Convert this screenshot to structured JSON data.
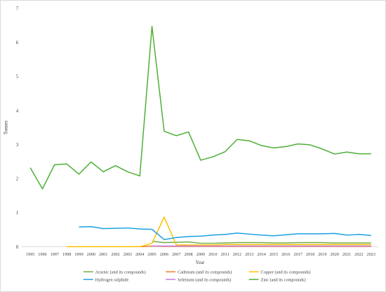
{
  "chart_data": {
    "type": "line",
    "title": "",
    "xlabel": "Year",
    "ylabel": "Tonnes",
    "ylim": [
      0,
      7
    ],
    "y_ticks": [
      "0",
      "1",
      "2",
      "3",
      "4",
      "5",
      "6",
      "7"
    ],
    "grid": false,
    "legend_position": "bottom",
    "categories": [
      "1995",
      "1996",
      "1997",
      "1998",
      "1999",
      "2000",
      "2001",
      "2002",
      "2003",
      "2004",
      "2005",
      "2006",
      "2007",
      "2008",
      "2009",
      "2010",
      "2011",
      "2012",
      "2013",
      "2014",
      "2015",
      "2016",
      "2017",
      "2018",
      "2019",
      "2020",
      "2021",
      "2022",
      "2023"
    ],
    "series": [
      {
        "name": "Arsenic (and its compounds)",
        "color": "#70ad47",
        "values": [
          null,
          null,
          null,
          null,
          null,
          null,
          null,
          null,
          null,
          null,
          0.16,
          0.12,
          0.13,
          0.14,
          0.1,
          0.1,
          0.11,
          0.12,
          0.12,
          0.12,
          0.11,
          0.11,
          0.12,
          0.12,
          0.12,
          0.11,
          0.11,
          0.11,
          0.11
        ]
      },
      {
        "name": "Cadmium (and its compounds)",
        "color": "#ed7d31",
        "values": [
          null,
          null,
          null,
          0.0,
          0.0,
          0.0,
          0.0,
          0.0,
          0.0,
          0.0,
          0.02,
          0.01,
          0.01,
          0.01,
          0.01,
          0.01,
          0.01,
          0.01,
          0.01,
          0.01,
          0.01,
          0.01,
          0.01,
          0.01,
          0.01,
          0.01,
          0.01,
          0.01,
          0.01
        ]
      },
      {
        "name": "Copper (and its compounds)",
        "color": "#ffc000",
        "values": [
          null,
          null,
          null,
          0.0,
          0.0,
          0.0,
          0.0,
          0.0,
          0.0,
          0.0,
          0.1,
          0.87,
          0.05,
          0.05,
          0.05,
          0.05,
          0.06,
          0.06,
          0.06,
          0.06,
          0.06,
          0.06,
          0.06,
          0.06,
          0.06,
          0.06,
          0.06,
          0.06,
          0.06
        ]
      },
      {
        "name": "Hydrogen sulphide",
        "color": "#1ba1e2",
        "values": [
          null,
          null,
          null,
          null,
          0.58,
          0.59,
          0.53,
          0.54,
          0.55,
          0.52,
          0.51,
          0.21,
          0.27,
          0.3,
          0.31,
          0.34,
          0.36,
          0.4,
          0.37,
          0.34,
          0.32,
          0.35,
          0.38,
          0.38,
          0.38,
          0.39,
          0.34,
          0.36,
          0.33
        ]
      },
      {
        "name": "Selenium (and its compounds)",
        "color": "#c678dd",
        "values": [
          null,
          null,
          null,
          null,
          null,
          null,
          null,
          null,
          null,
          null,
          0.02,
          0.02,
          0.02,
          0.02,
          0.02,
          0.02,
          0.02,
          0.02,
          0.02,
          0.02,
          0.02,
          0.02,
          0.02,
          0.02,
          0.02,
          0.02,
          0.02,
          0.02,
          0.02
        ]
      },
      {
        "name": "Zinc (and its compounds)",
        "color": "#4caf35",
        "values": [
          2.32,
          1.7,
          2.41,
          2.43,
          2.13,
          2.49,
          2.2,
          2.38,
          2.2,
          2.08,
          6.47,
          3.39,
          3.26,
          3.37,
          2.54,
          2.64,
          2.79,
          3.15,
          3.11,
          2.97,
          2.9,
          2.94,
          3.02,
          2.99,
          2.87,
          2.72,
          2.78,
          2.73,
          2.73
        ]
      }
    ]
  }
}
